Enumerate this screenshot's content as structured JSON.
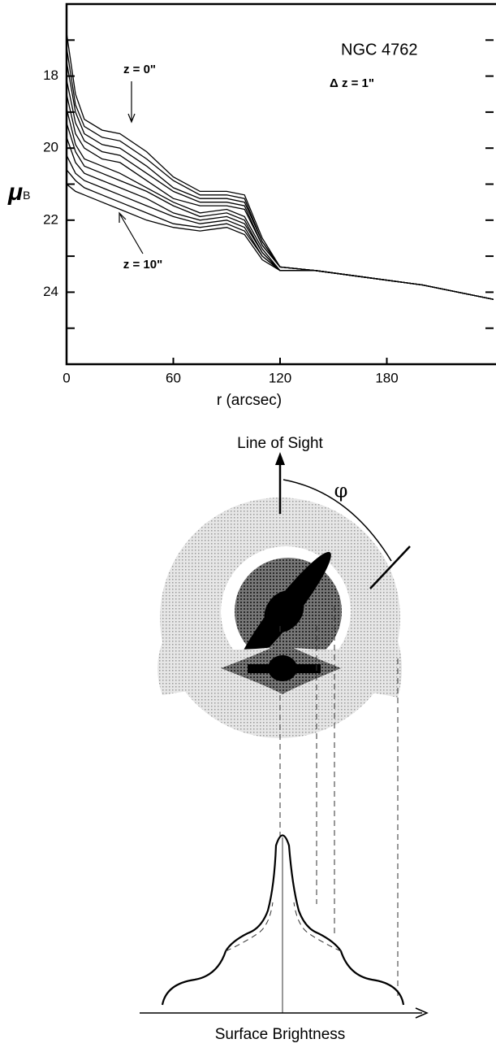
{
  "chart_data": {
    "type": "line",
    "annotations": [
      "NGC 4762",
      "Δ z = 1\"",
      "z = 0\"",
      "z = 10\""
    ],
    "ylabel": {
      "symbol": "μ",
      "subscript": "B"
    },
    "xlabel": "r  (arcsec)",
    "x": [
      0,
      5,
      10,
      20,
      30,
      45,
      60,
      75,
      90,
      100,
      110,
      120,
      140,
      170,
      200,
      240
    ],
    "xlim": [
      0,
      240
    ],
    "xticks": [
      0,
      60,
      120,
      180
    ],
    "ylim": [
      26,
      16
    ],
    "yticks": [
      18,
      20,
      22,
      24
    ],
    "yminorticks": [
      17,
      19,
      21,
      23,
      25
    ],
    "color": "#000000",
    "series": [
      {
        "values": [
          16.8,
          18.5,
          19.2,
          19.5,
          19.6,
          20.1,
          20.8,
          21.2,
          21.2,
          21.3,
          22.5,
          23.3,
          23.4,
          23.6,
          23.8,
          24.2
        ]
      },
      {
        "values": [
          17.2,
          18.8,
          19.4,
          19.7,
          19.8,
          20.3,
          20.9,
          21.3,
          21.3,
          21.4,
          22.6,
          23.3,
          23.4,
          23.6,
          23.8,
          24.2
        ]
      },
      {
        "values": [
          17.6,
          19.0,
          19.6,
          19.9,
          20.0,
          20.5,
          21.1,
          21.4,
          21.4,
          21.5,
          22.6,
          23.3,
          23.4,
          23.6,
          23.8,
          24.2
        ]
      },
      {
        "values": [
          18.1,
          19.3,
          19.8,
          20.1,
          20.2,
          20.7,
          21.2,
          21.5,
          21.5,
          21.6,
          22.7,
          23.3,
          23.4,
          23.6,
          23.8,
          24.2
        ]
      },
      {
        "values": [
          18.5,
          19.6,
          20.0,
          20.3,
          20.4,
          20.9,
          21.4,
          21.6,
          21.6,
          21.7,
          22.7,
          23.3,
          23.4,
          23.6,
          23.8,
          24.2
        ]
      },
      {
        "values": [
          18.9,
          19.9,
          20.3,
          20.5,
          20.7,
          21.1,
          21.5,
          21.8,
          21.7,
          21.9,
          22.8,
          23.4,
          23.4,
          23.6,
          23.8,
          24.2
        ]
      },
      {
        "values": [
          19.3,
          20.1,
          20.5,
          20.7,
          20.9,
          21.2,
          21.6,
          21.9,
          21.8,
          22.0,
          22.9,
          23.4,
          23.4,
          23.6,
          23.8,
          24.2
        ]
      },
      {
        "values": [
          19.7,
          20.4,
          20.7,
          20.9,
          21.1,
          21.4,
          21.8,
          22.0,
          21.9,
          22.1,
          22.9,
          23.4,
          23.4,
          23.6,
          23.8,
          24.2
        ]
      },
      {
        "values": [
          20.2,
          20.7,
          20.9,
          21.1,
          21.3,
          21.6,
          21.9,
          22.1,
          22.0,
          22.2,
          23.0,
          23.4,
          23.4,
          23.6,
          23.8,
          24.2
        ]
      },
      {
        "values": [
          20.6,
          20.9,
          21.1,
          21.3,
          21.5,
          21.8,
          22.1,
          22.2,
          22.1,
          22.3,
          23.0,
          23.4,
          23.4,
          23.6,
          23.8,
          24.2
        ]
      },
      {
        "values": [
          21.0,
          21.2,
          21.3,
          21.5,
          21.7,
          22.0,
          22.2,
          22.3,
          22.2,
          22.4,
          23.1,
          23.4,
          23.4,
          23.6,
          23.8,
          24.2
        ]
      }
    ]
  },
  "diagram": {
    "line_of_sight": "Line of Sight",
    "angle": "φ",
    "axis_label": "Surface Brightness"
  }
}
